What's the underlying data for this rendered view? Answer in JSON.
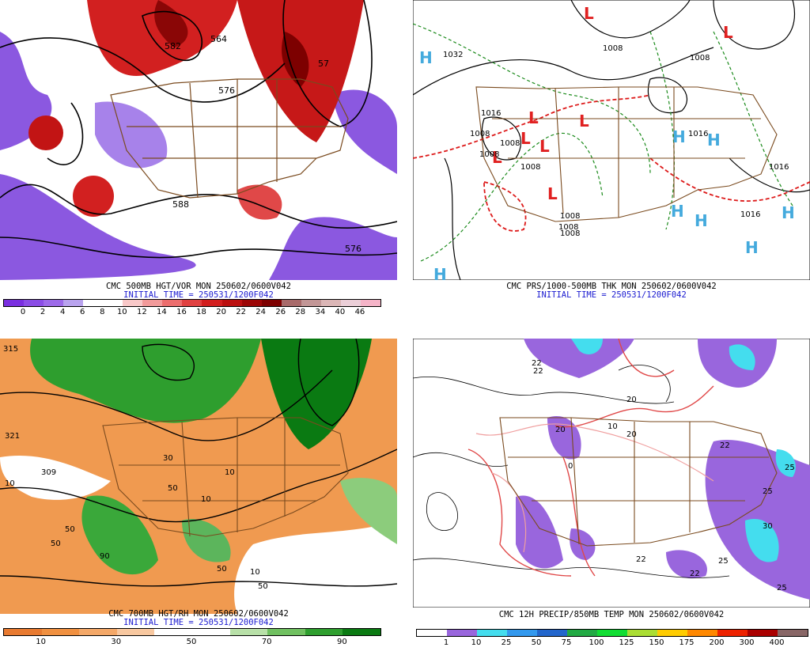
{
  "panels": {
    "vort": {
      "line1": "CMC 500MB HGT/VOR MON 250602/0600V042",
      "line2": "INITIAL TIME = 250531/1200F042",
      "contour_labels": [
        "582",
        "564",
        "576",
        "576",
        "588",
        "57"
      ],
      "scale": {
        "colors": [
          "#7a2fe0",
          "#8b4de6",
          "#9d6ae9",
          "#b9a3ee",
          "#ffffff",
          "#ffffff",
          "#f8c8c8",
          "#f29a9a",
          "#ec6d6d",
          "#e04040",
          "#d21e1e",
          "#bb0f0f",
          "#9c0606",
          "#7d0000",
          "#a86a6a",
          "#c29696",
          "#dbb6b6",
          "#ebcfd8",
          "#f5b4c8"
        ],
        "labels": [
          "0",
          "2",
          "4",
          "6",
          "8",
          "10",
          "12",
          "14",
          "16",
          "18",
          "20",
          "22",
          "24",
          "26",
          "28",
          "34",
          "40",
          "46"
        ]
      }
    },
    "pres": {
      "line1": "CMC PRS/1000-500MB THK MON 250602/0600V042",
      "line2": "INITIAL TIME = 250531/1200F042",
      "contour_labels": [
        "1032",
        "1008",
        "1008",
        "1016",
        "1008",
        "1008",
        "1008",
        "1008",
        "1008",
        "1008",
        "1016",
        "1016",
        "1016",
        "1008"
      ],
      "highs": [
        "H",
        "H",
        "H",
        "H",
        "H",
        "H",
        "H",
        "H"
      ],
      "lows": [
        "L",
        "L",
        "L",
        "L",
        "L",
        "L",
        "L",
        "L"
      ]
    },
    "rh": {
      "line1": "CMC 700MB HGT/RH MON 250602/0600V042",
      "line2": "INITIAL TIME = 250531/1200F042",
      "contour_labels": [
        "315",
        "321",
        "309",
        "10",
        "10",
        "50",
        "30",
        "50",
        "90",
        "10",
        "50",
        "10",
        "50",
        "50"
      ],
      "scale": {
        "colors": [
          "#e87a30",
          "#f09040",
          "#f4a868",
          "#f8c8a0",
          "#ffffff",
          "#ffffff",
          "#b8e0a8",
          "#70c060",
          "#2e9e2e",
          "#0a7a12"
        ],
        "labels": [
          "10",
          "30",
          "50",
          "70",
          "90"
        ]
      }
    },
    "precip": {
      "line1": "CMC 12H PRECIP/850MB TEMP MON 250602/0600V042",
      "scale": {
        "colors": [
          "#ffffff",
          "#9966dd",
          "#44ddee",
          "#3399ee",
          "#2266cc",
          "#22aa44",
          "#11dd33",
          "#aadd33",
          "#ffcc00",
          "#ff8800",
          "#ee2200",
          "#aa0000",
          "#886666"
        ],
        "labels": [
          "1",
          "10",
          "25",
          "50",
          "75",
          "100",
          "125",
          "150",
          "175",
          "200",
          "300",
          "400"
        ]
      },
      "contour_labels": [
        "22",
        "20",
        "20",
        "10",
        "20",
        "0",
        "22",
        "25",
        "22",
        "25",
        "22",
        "22",
        "30",
        "25",
        "25"
      ]
    }
  }
}
